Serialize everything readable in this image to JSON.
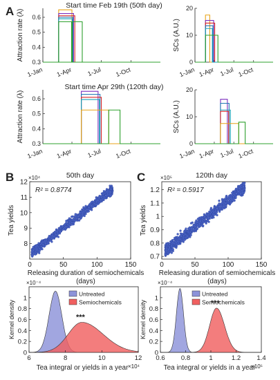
{
  "panels": {
    "A": "A",
    "B": "B",
    "C": "C"
  },
  "colors": {
    "axis": "#222222",
    "scatter": "#4a63c4",
    "untreated_fill": "#8c93d9",
    "semio_fill": "#f06060",
    "series": [
      "#7b2fbe",
      "#e8a317",
      "#1f77b4",
      "#d62728",
      "#17a2b8",
      "#2ca02c"
    ]
  },
  "chart_data": [
    {
      "id": "a1",
      "type": "line",
      "title": "Start time Feb 19th (50th day)",
      "ylabel": "Attraction rate (λ)",
      "xlabel": "",
      "xlim": [
        1,
        365
      ],
      "ylim": [
        0.3,
        0.66
      ],
      "yticks": [
        0.3,
        0.4,
        0.5,
        0.6
      ],
      "xticks": [
        {
          "v": 1,
          "label": "1-Jan"
        },
        {
          "v": 91,
          "label": "1-Apr"
        },
        {
          "v": 182,
          "label": "1-Jul"
        },
        {
          "v": 274,
          "label": "1-Oct"
        }
      ],
      "series": [
        {
          "color": "#e8a317",
          "value": 0.65,
          "x": [
            50,
            91
          ]
        },
        {
          "color": "#7b2fbe",
          "value": 0.625,
          "x": [
            50,
            96
          ]
        },
        {
          "color": "#d62728",
          "value": 0.61,
          "x": [
            50,
            100
          ]
        },
        {
          "color": "#1f77b4",
          "value": 0.6,
          "x": [
            50,
            94
          ]
        },
        {
          "color": "#17a2b8",
          "value": 0.59,
          "x": [
            50,
            92
          ]
        },
        {
          "color": "#2ca02c",
          "value": 0.57,
          "x": [
            50,
            90
          ]
        },
        {
          "color": "#2ca02c",
          "value": 0.57,
          "x": [
            92,
            123
          ]
        }
      ]
    },
    {
      "id": "a2",
      "type": "line",
      "title": "",
      "ylabel": "SCs (A.U.)",
      "xlabel": "",
      "xlim": [
        1,
        365
      ],
      "ylim": [
        0,
        20
      ],
      "yticks": [
        0,
        10,
        20
      ],
      "xticks": [
        {
          "v": 1,
          "label": "1-Jan"
        },
        {
          "v": 91,
          "label": "1-Apr"
        },
        {
          "v": 182,
          "label": "1-Jul"
        },
        {
          "v": 274,
          "label": "1-Oct"
        }
      ],
      "series": [
        {
          "color": "#e8a317",
          "value": 17.5,
          "x": [
            50,
            70
          ]
        },
        {
          "color": "#7b2fbe",
          "value": 15.5,
          "x": [
            50,
            88
          ]
        },
        {
          "color": "#d62728",
          "value": 14.5,
          "x": [
            50,
            93
          ]
        },
        {
          "color": "#1f77b4",
          "value": 13.5,
          "x": [
            50,
            85
          ]
        },
        {
          "color": "#17a2b8",
          "value": 12.5,
          "x": [
            50,
            82
          ]
        },
        {
          "color": "#2ca02c",
          "value": 10,
          "x": [
            50,
            108
          ]
        }
      ]
    },
    {
      "id": "a3",
      "type": "line",
      "title": "Start time Apr 29th (120th day)",
      "ylabel": "Attraction rate (λ)",
      "xlabel": "",
      "xlim": [
        1,
        365
      ],
      "ylim": [
        0.3,
        0.66
      ],
      "yticks": [
        0.3,
        0.4,
        0.5,
        0.6
      ],
      "xticks": [
        {
          "v": 1,
          "label": "1-Jan"
        },
        {
          "v": 91,
          "label": "1-Apr"
        },
        {
          "v": 182,
          "label": "1-Jul"
        },
        {
          "v": 274,
          "label": "1-Oct"
        }
      ],
      "series": [
        {
          "color": "#7b2fbe",
          "value": 0.65,
          "x": [
            120,
            172
          ]
        },
        {
          "color": "#1f77b4",
          "value": 0.63,
          "x": [
            120,
            178
          ]
        },
        {
          "color": "#d62728",
          "value": 0.61,
          "x": [
            120,
            182
          ]
        },
        {
          "color": "#17a2b8",
          "value": 0.595,
          "x": [
            120,
            176
          ]
        },
        {
          "color": "#e8a317",
          "value": 0.525,
          "x": [
            120,
            205
          ]
        },
        {
          "color": "#2ca02c",
          "value": 0.525,
          "x": [
            205,
            240
          ]
        }
      ]
    },
    {
      "id": "a4",
      "type": "line",
      "title": "",
      "ylabel": "SCs (A.U.)",
      "xlabel": "",
      "xlim": [
        1,
        365
      ],
      "ylim": [
        0,
        20
      ],
      "yticks": [
        0,
        10,
        20
      ],
      "xticks": [
        {
          "v": 1,
          "label": "1-Jan"
        },
        {
          "v": 91,
          "label": "1-Apr"
        },
        {
          "v": 182,
          "label": "1-Jul"
        },
        {
          "v": 274,
          "label": "1-Oct"
        }
      ],
      "series": [
        {
          "color": "#7b2fbe",
          "value": 16.5,
          "x": [
            120,
            152
          ]
        },
        {
          "color": "#1f77b4",
          "value": 15,
          "x": [
            120,
            160
          ]
        },
        {
          "color": "#17a2b8",
          "value": 12.5,
          "x": [
            120,
            166
          ]
        },
        {
          "color": "#d62728",
          "value": 12,
          "x": [
            120,
            158
          ]
        },
        {
          "color": "#e8a317",
          "value": 7.5,
          "x": [
            120,
            205
          ]
        },
        {
          "color": "#2ca02c",
          "value": 8,
          "x": [
            205,
            235
          ]
        }
      ]
    },
    {
      "id": "b1",
      "type": "scatter",
      "title": "50th day",
      "annotation": "R² = 0.8774",
      "xlabel": "Releasing duration of semiochemicals (days)",
      "ylabel": "Tea yields",
      "multiplier": "×10⁴",
      "xlim": [
        0,
        150
      ],
      "ylim": [
        7,
        12
      ],
      "xticks": [
        0,
        50,
        100,
        150
      ],
      "yticks": [
        8,
        9,
        10,
        11,
        12
      ],
      "n_points": 1000,
      "trend": {
        "x": [
          3,
          123
        ],
        "y": [
          7.4,
          11.5
        ]
      },
      "spread": 0.28
    },
    {
      "id": "c1",
      "type": "scatter",
      "title": "120th day",
      "annotation": "R² = 0.5917",
      "xlabel": "Releasing duration of semiochemicals (days)",
      "ylabel": "Tea yields",
      "multiplier": "×10⁵",
      "xlim": [
        0,
        150
      ],
      "ylim": [
        0.68,
        1.26
      ],
      "xticks": [
        0,
        50,
        100,
        150
      ],
      "yticks": [
        0.7,
        0.8,
        0.9,
        1.0,
        1.1,
        1.2
      ],
      "n_points": 1000,
      "trend": {
        "x": [
          5,
          125
        ],
        "y": [
          0.74,
          1.22
        ]
      },
      "spread": 0.045
    },
    {
      "id": "b2",
      "type": "area",
      "title": "",
      "xlabel": "Tea integral or yields in a year",
      "ylabel": "Kernel density",
      "multiplier_y": "×10⁻⁴",
      "multiplier_x": "×10⁴",
      "xlim": [
        6,
        12
      ],
      "ylim": [
        0,
        1.2
      ],
      "xticks": [
        6,
        8,
        10,
        12
      ],
      "yticks": [
        0,
        0.2,
        0.4,
        0.6,
        0.8,
        1.0
      ],
      "annotation": "***",
      "legend": [
        "Untreated",
        "Semiochemicals"
      ],
      "series": [
        {
          "name": "Untreated",
          "mu": 7.45,
          "sigma": 0.35,
          "peak": 1.12,
          "skew": 0.0
        },
        {
          "name": "Semiochemicals",
          "mu": 8.9,
          "sigma": 0.75,
          "peak": 0.55,
          "skew": 0.55
        }
      ]
    },
    {
      "id": "c2",
      "type": "area",
      "title": "",
      "xlabel": "Tea integral or yields in a year",
      "ylabel": "Kernel density",
      "multiplier_y": "×10⁻⁴",
      "multiplier_x": "×10⁵",
      "xlim": [
        0.6,
        1.4
      ],
      "ylim": [
        0,
        1.2
      ],
      "xticks": [
        0.6,
        0.8,
        1.0,
        1.2,
        1.4
      ],
      "yticks": [
        0,
        0.2,
        0.4,
        0.6,
        0.8,
        1.0
      ],
      "annotation": "***",
      "legend": [
        "Untreated",
        "Semiochemicals"
      ],
      "series": [
        {
          "name": "Untreated",
          "mu": 0.755,
          "sigma": 0.028,
          "peak": 1.17,
          "skew": 0.0
        },
        {
          "name": "Semiochemicals",
          "mu": 1.045,
          "sigma": 0.055,
          "peak": 0.81,
          "skew": 0.15
        }
      ]
    }
  ]
}
